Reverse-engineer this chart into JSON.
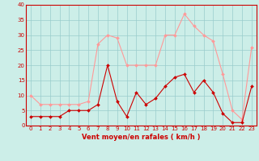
{
  "x": [
    0,
    1,
    2,
    3,
    4,
    5,
    6,
    7,
    8,
    9,
    10,
    11,
    12,
    13,
    14,
    15,
    16,
    17,
    18,
    19,
    20,
    21,
    22,
    23
  ],
  "wind_mean": [
    3,
    3,
    3,
    3,
    5,
    5,
    5,
    7,
    20,
    8,
    3,
    11,
    7,
    9,
    13,
    16,
    17,
    11,
    15,
    11,
    4,
    1,
    1,
    13
  ],
  "wind_gust": [
    10,
    7,
    7,
    7,
    7,
    7,
    8,
    27,
    30,
    29,
    20,
    20,
    20,
    20,
    30,
    30,
    37,
    33,
    30,
    28,
    17,
    5,
    2,
    26
  ],
  "xlabel": "Vent moyen/en rafales ( km/h )",
  "xlim_min": -0.5,
  "xlim_max": 23.5,
  "ylim": [
    0,
    40
  ],
  "yticks": [
    0,
    5,
    10,
    15,
    20,
    25,
    30,
    35,
    40
  ],
  "xticks": [
    0,
    1,
    2,
    3,
    4,
    5,
    6,
    7,
    8,
    9,
    10,
    11,
    12,
    13,
    14,
    15,
    16,
    17,
    18,
    19,
    20,
    21,
    22,
    23
  ],
  "mean_color": "#cc0000",
  "gust_color": "#ff9999",
  "bg_color": "#cceee8",
  "grid_color": "#99cccc",
  "axis_color": "#cc0000",
  "text_color": "#cc0000",
  "label_fontsize": 5.0,
  "xlabel_fontsize": 6.0
}
